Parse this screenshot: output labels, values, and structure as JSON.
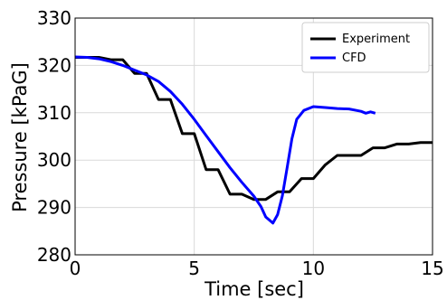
{
  "chart_data": {
    "type": "line",
    "xlabel": "Time [sec]",
    "ylabel": "Pressure [kPaG]",
    "xlim": [
      0,
      15
    ],
    "ylim": [
      280,
      330
    ],
    "x_ticks": [
      "0",
      "5",
      "10",
      "15"
    ],
    "y_ticks": [
      "280",
      "290",
      "300",
      "310",
      "320",
      "330"
    ],
    "grid": true,
    "legend_position": "top-right",
    "series": [
      {
        "name": "Experiment",
        "color": "#000000",
        "points": [
          [
            0,
            321.7
          ],
          [
            1.0,
            321.7
          ],
          [
            1.5,
            321.2
          ],
          [
            2.0,
            321.2
          ],
          [
            2.5,
            318.3
          ],
          [
            3.0,
            318.3
          ],
          [
            3.5,
            312.8
          ],
          [
            4.0,
            312.8
          ],
          [
            4.5,
            305.6
          ],
          [
            5.0,
            305.6
          ],
          [
            5.5,
            298.0
          ],
          [
            6.0,
            298.0
          ],
          [
            6.5,
            292.8
          ],
          [
            7.0,
            292.8
          ],
          [
            7.5,
            291.7
          ],
          [
            8.0,
            291.7
          ],
          [
            8.5,
            293.3
          ],
          [
            9.0,
            293.3
          ],
          [
            9.5,
            296.1
          ],
          [
            10.0,
            296.1
          ],
          [
            10.5,
            299.0
          ],
          [
            11.0,
            301.0
          ],
          [
            12.0,
            301.0
          ],
          [
            12.5,
            302.6
          ],
          [
            13.0,
            302.6
          ],
          [
            13.5,
            303.4
          ],
          [
            14.0,
            303.4
          ],
          [
            14.5,
            303.7
          ],
          [
            15.0,
            303.7
          ]
        ]
      },
      {
        "name": "CFD",
        "color": "#0000ff",
        "points": [
          [
            0,
            321.8
          ],
          [
            0.5,
            321.7
          ],
          [
            1.0,
            321.4
          ],
          [
            1.5,
            320.8
          ],
          [
            2.0,
            320.0
          ],
          [
            2.5,
            319.0
          ],
          [
            3.0,
            318.0
          ],
          [
            3.5,
            316.6
          ],
          [
            4.0,
            314.5
          ],
          [
            4.5,
            311.8
          ],
          [
            5.0,
            308.6
          ],
          [
            5.5,
            305.2
          ],
          [
            6.0,
            301.8
          ],
          [
            6.5,
            298.4
          ],
          [
            7.0,
            295.3
          ],
          [
            7.5,
            292.4
          ],
          [
            7.8,
            290.2
          ],
          [
            8.0,
            288.0
          ],
          [
            8.3,
            286.7
          ],
          [
            8.5,
            288.5
          ],
          [
            8.7,
            292.5
          ],
          [
            8.9,
            298.5
          ],
          [
            9.1,
            304.5
          ],
          [
            9.3,
            308.6
          ],
          [
            9.6,
            310.5
          ],
          [
            10.0,
            311.3
          ],
          [
            10.5,
            311.1
          ],
          [
            11.0,
            310.9
          ],
          [
            11.5,
            310.8
          ],
          [
            12.0,
            310.3
          ],
          [
            12.2,
            309.9
          ],
          [
            12.4,
            310.2
          ],
          [
            12.6,
            309.9
          ]
        ]
      }
    ]
  }
}
